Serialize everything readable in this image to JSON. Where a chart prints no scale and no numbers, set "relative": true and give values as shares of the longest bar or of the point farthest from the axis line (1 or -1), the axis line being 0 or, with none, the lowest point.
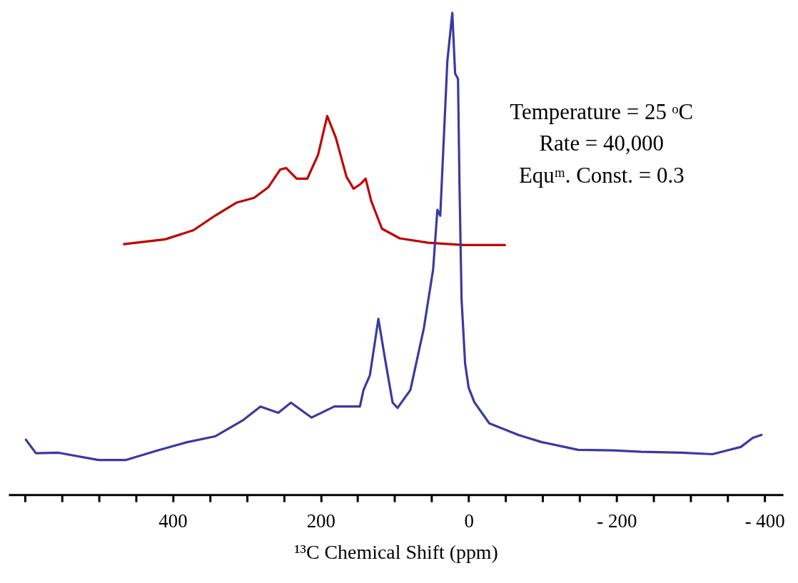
{
  "chart_data": {
    "type": "line",
    "relative": true,
    "xlabel": "¹³C Chemical Shift (ppm)",
    "annotations": [
      "Temperature = 25 ᵒC",
      "Rate = 40,000",
      "Equᵐ. Const. = 0.3"
    ],
    "xlim": [
      622,
      -425
    ],
    "xticks": [
      {
        "value": 600,
        "label": null
      },
      {
        "value": 550,
        "label": null
      },
      {
        "value": 500,
        "label": null
      },
      {
        "value": 450,
        "label": null
      },
      400,
      {
        "value": 350,
        "label": null
      },
      {
        "value": 300,
        "label": null
      },
      {
        "value": 250,
        "label": null
      },
      200,
      {
        "value": 150,
        "label": null
      },
      {
        "value": 100,
        "label": null
      },
      {
        "value": 50,
        "label": null
      },
      0,
      {
        "value": -50,
        "label": null
      },
      {
        "value": -100,
        "label": null
      },
      {
        "value": -150,
        "label": null
      },
      {
        "value": -200,
        "label": "- 200"
      },
      {
        "value": -250,
        "label": null
      },
      {
        "value": -300,
        "label": null
      },
      {
        "value": -350,
        "label": null
      },
      {
        "value": -400,
        "label": "- 400"
      }
    ],
    "tick_labels": "x",
    "grid": false,
    "series": [
      {
        "color": "#c00000",
        "x": [
          465.9,
          410.2,
          371.8,
          342.9,
          314.1,
          290.1,
          270.9,
          254.6,
          246.9,
          232.5,
          218.1,
          203.6,
          191.2,
          179.6,
          165.2,
          155.6,
          146.0,
          139.3,
          131.6,
          117.2,
          93.2,
          54.8,
          6.7,
          -49.0
        ],
        "values": [
          0.52,
          0.53,
          0.549,
          0.579,
          0.606,
          0.616,
          0.638,
          0.675,
          0.678,
          0.656,
          0.656,
          0.705,
          0.786,
          0.741,
          0.66,
          0.635,
          0.645,
          0.656,
          0.609,
          0.552,
          0.532,
          0.523,
          0.518,
          0.518
        ]
      },
      {
        "color": "#3a3aa0",
        "x": [
          598.5,
          585.0,
          554.3,
          500.5,
          463.0,
          419.8,
          380.4,
          342.9,
          305.5,
          281.5,
          257.4,
          240.2,
          212.3,
          181.6,
          147.0,
          142.2,
          133.5,
          122.0,
          113.4,
          102.8,
          96.1,
          78.8,
          60.5,
          48.0,
          42.3,
          38.4,
          28.8,
          22.1,
          18.3,
          14.4,
          12.5,
          9.6,
          4.8,
          0,
          -7.7,
          -27.9,
          -67.2,
          -98.9,
          -147.9,
          -195.0,
          -233.4,
          -288.2,
          -329.5,
          -367.9,
          -384.2,
          -395.8
        ],
        "values": [
          0.114,
          0.086,
          0.087,
          0.072,
          0.072,
          0.092,
          0.109,
          0.121,
          0.154,
          0.183,
          0.17,
          0.191,
          0.16,
          0.183,
          0.183,
          0.217,
          0.248,
          0.365,
          0.285,
          0.191,
          0.18,
          0.217,
          0.346,
          0.468,
          0.591,
          0.579,
          0.9,
          1.0,
          0.874,
          0.863,
          0.653,
          0.406,
          0.272,
          0.222,
          0.192,
          0.148,
          0.124,
          0.109,
          0.093,
          0.092,
          0.089,
          0.087,
          0.084,
          0.099,
          0.118,
          0.124
        ]
      }
    ]
  }
}
